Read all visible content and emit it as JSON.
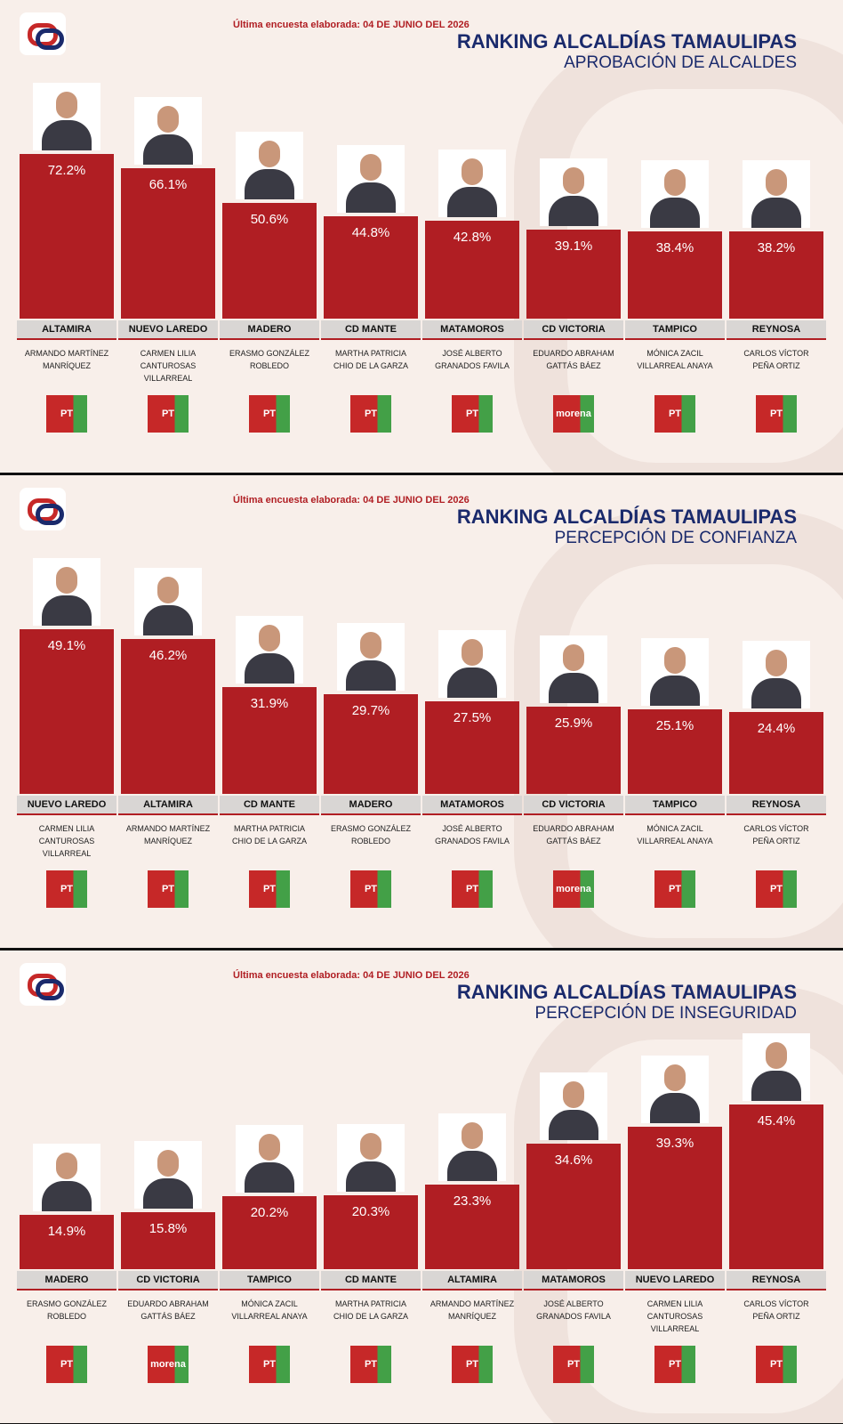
{
  "chart_data": [
    {
      "type": "bar",
      "header": "Última encuesta elaborada: 04 DE JUNIO DEL 2026",
      "title": "RANKING ALCALDÍAS TAMAULIPAS",
      "subtitle": "APROBACIÓN DE ALCALDES",
      "color": "#b01e23",
      "categories": [
        "ALTAMIRA",
        "NUEVO LAREDO",
        "MADERO",
        "CD MANTE",
        "MATAMOROS",
        "CD VICTORIA",
        "TAMPICO",
        "REYNOSA"
      ],
      "values": [
        72.2,
        66.1,
        50.6,
        44.8,
        42.8,
        39.1,
        38.4,
        38.2
      ],
      "value_labels": [
        "72.2%",
        "66.1%",
        "50.6%",
        "44.8%",
        "42.8%",
        "39.1%",
        "38.4%",
        "38.2%"
      ],
      "mayors": [
        "ARMANDO MARTÍNEZ MANRÍQUEZ",
        "CARMEN LILIA CANTUROSAS VILLARREAL",
        "ERASMO GONZÁLEZ ROBLEDO",
        "MARTHA PATRICIA CHIO DE LA GARZA",
        "JOSÉ ALBERTO GRANADOS FAVILA",
        "EDUARDO ABRAHAM GATTÁS BÁEZ",
        "MÓNICA ZACIL VILLARREAL ANAYA",
        "CARLOS VÍCTOR PEÑA ORTIZ"
      ],
      "parties": [
        "PT",
        "PT",
        "PT",
        "PT",
        "PT",
        "morena",
        "PT",
        "PT"
      ]
    },
    {
      "type": "bar",
      "header": "Última encuesta elaborada: 04 DE JUNIO DEL 2026",
      "title": "RANKING ALCALDÍAS TAMAULIPAS",
      "subtitle": "PERCEPCIÓN DE CONFIANZA",
      "color": "#b01e23",
      "categories": [
        "NUEVO LAREDO",
        "ALTAMIRA",
        "CD MANTE",
        "MADERO",
        "MATAMOROS",
        "CD VICTORIA",
        "TAMPICO",
        "REYNOSA"
      ],
      "values": [
        49.1,
        46.2,
        31.9,
        29.7,
        27.5,
        25.9,
        25.1,
        24.4
      ],
      "value_labels": [
        "49.1%",
        "46.2%",
        "31.9%",
        "29.7%",
        "27.5%",
        "25.9%",
        "25.1%",
        "24.4%"
      ],
      "mayors": [
        "CARMEN LILIA CANTUROSAS VILLARREAL",
        "ARMANDO MARTÍNEZ MANRÍQUEZ",
        "MARTHA PATRICIA CHIO DE LA GARZA",
        "ERASMO GONZÁLEZ ROBLEDO",
        "JOSÉ ALBERTO GRANADOS FAVILA",
        "EDUARDO ABRAHAM GATTÁS BÁEZ",
        "MÓNICA ZACIL VILLARREAL ANAYA",
        "CARLOS VÍCTOR PEÑA ORTIZ"
      ],
      "parties": [
        "PT",
        "PT",
        "PT",
        "PT",
        "PT",
        "morena",
        "PT",
        "PT"
      ]
    },
    {
      "type": "bar",
      "header": "Última encuesta elaborada: 04 DE JUNIO DEL 2026",
      "title": "RANKING ALCALDÍAS TAMAULIPAS",
      "subtitle": "PERCEPCIÓN DE INSEGURIDAD",
      "color": "#b01e23",
      "categories": [
        "MADERO",
        "CD VICTORIA",
        "TAMPICO",
        "CD MANTE",
        "ALTAMIRA",
        "MATAMOROS",
        "NUEVO LAREDO",
        "REYNOSA"
      ],
      "values": [
        14.9,
        15.8,
        20.2,
        20.3,
        23.3,
        34.6,
        39.3,
        45.4
      ],
      "value_labels": [
        "14.9%",
        "15.8%",
        "20.2%",
        "20.3%",
        "23.3%",
        "34.6%",
        "39.3%",
        "45.4%"
      ],
      "mayors": [
        "ERASMO GONZÁLEZ ROBLEDO",
        "EDUARDO ABRAHAM GATTÁS BÁEZ",
        "MÓNICA ZACIL VILLARREAL ANAYA",
        "MARTHA PATRICIA CHIO DE LA GARZA",
        "ARMANDO MARTÍNEZ MANRÍQUEZ",
        "JOSÉ ALBERTO GRANADOS FAVILA",
        "CARMEN LILIA CANTUROSAS VILLARREAL",
        "CARLOS VÍCTOR PEÑA ORTIZ"
      ],
      "parties": [
        "PT",
        "morena",
        "PT",
        "PT",
        "PT",
        "PT",
        "PT",
        "PT"
      ]
    }
  ]
}
